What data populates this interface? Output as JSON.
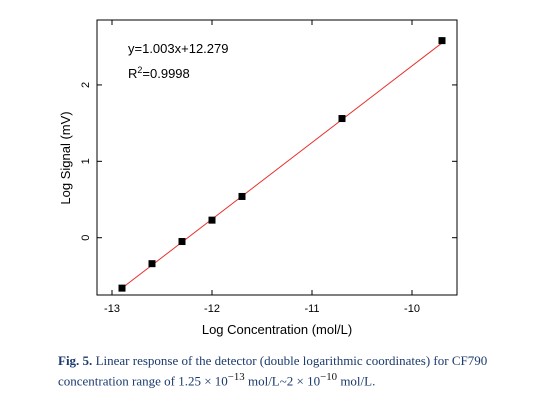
{
  "chart_data": {
    "type": "scatter",
    "xlabel": "Log Concentration (mol/L)",
    "ylabel": "Log Signal (mV)",
    "xlim": [
      -13.15,
      -9.55
    ],
    "ylim": [
      -0.75,
      2.85
    ],
    "xticks": [
      -13,
      -12,
      -11,
      -10
    ],
    "xtick_labels": [
      "-13",
      "-12",
      "-11",
      "-10"
    ],
    "yticks": [
      0,
      1,
      2
    ],
    "ytick_labels": [
      "0",
      "1",
      "2"
    ],
    "grid": false,
    "points": [
      {
        "x": -12.9,
        "y": -0.66
      },
      {
        "x": -12.6,
        "y": -0.34
      },
      {
        "x": -12.3,
        "y": -0.05
      },
      {
        "x": -12.0,
        "y": 0.23
      },
      {
        "x": -11.7,
        "y": 0.54
      },
      {
        "x": -10.7,
        "y": 1.56
      },
      {
        "x": -9.7,
        "y": 2.58
      }
    ],
    "fit": {
      "slope": 1.003,
      "intercept": 12.279,
      "x_range": [
        -12.9,
        -9.7
      ],
      "color": "#e8322d"
    },
    "marker_color": "#000000",
    "annotations": {
      "equation": "y=1.003x+12.279",
      "r2_prefix": "R",
      "r2_sup": "2",
      "r2_value": "=0.9998"
    }
  },
  "caption": {
    "label": "Fig. 5.",
    "text_before": " Linear response of the detector (double logarithmic coordinates) for CF790 concentration range of 1.25 × 10",
    "exp1": "−13",
    "text_middle": " mol/L~2 × 10",
    "exp2": "−10",
    "text_after": " mol/L."
  }
}
